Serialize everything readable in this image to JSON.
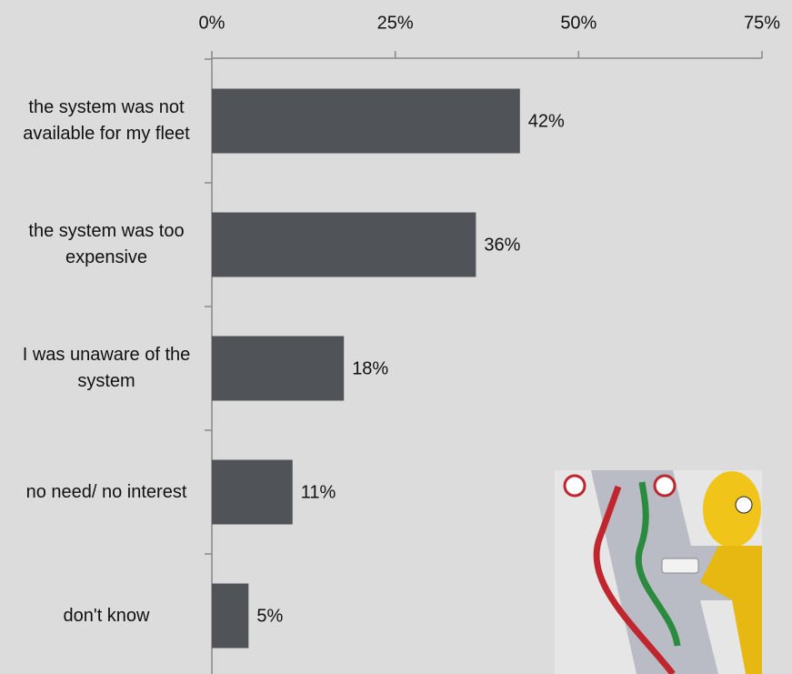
{
  "chart_data": {
    "type": "bar",
    "orientation": "horizontal",
    "categories": [
      "the system was not available for my fleet",
      "the system was too expensive",
      "I was unaware of the system",
      "no need/ no interest",
      "don't know"
    ],
    "values": [
      42,
      36,
      18,
      11,
      5
    ],
    "value_labels": [
      "42%",
      "36%",
      "18%",
      "11%",
      "5%"
    ],
    "color": "#505458",
    "xlim": [
      0,
      75
    ],
    "xticks": [
      {
        "value": 0,
        "label": "0%"
      },
      {
        "value": 25,
        "label": "25%"
      },
      {
        "value": 50,
        "label": "50%"
      },
      {
        "value": 75,
        "label": "75%"
      }
    ],
    "grid": false
  }
}
